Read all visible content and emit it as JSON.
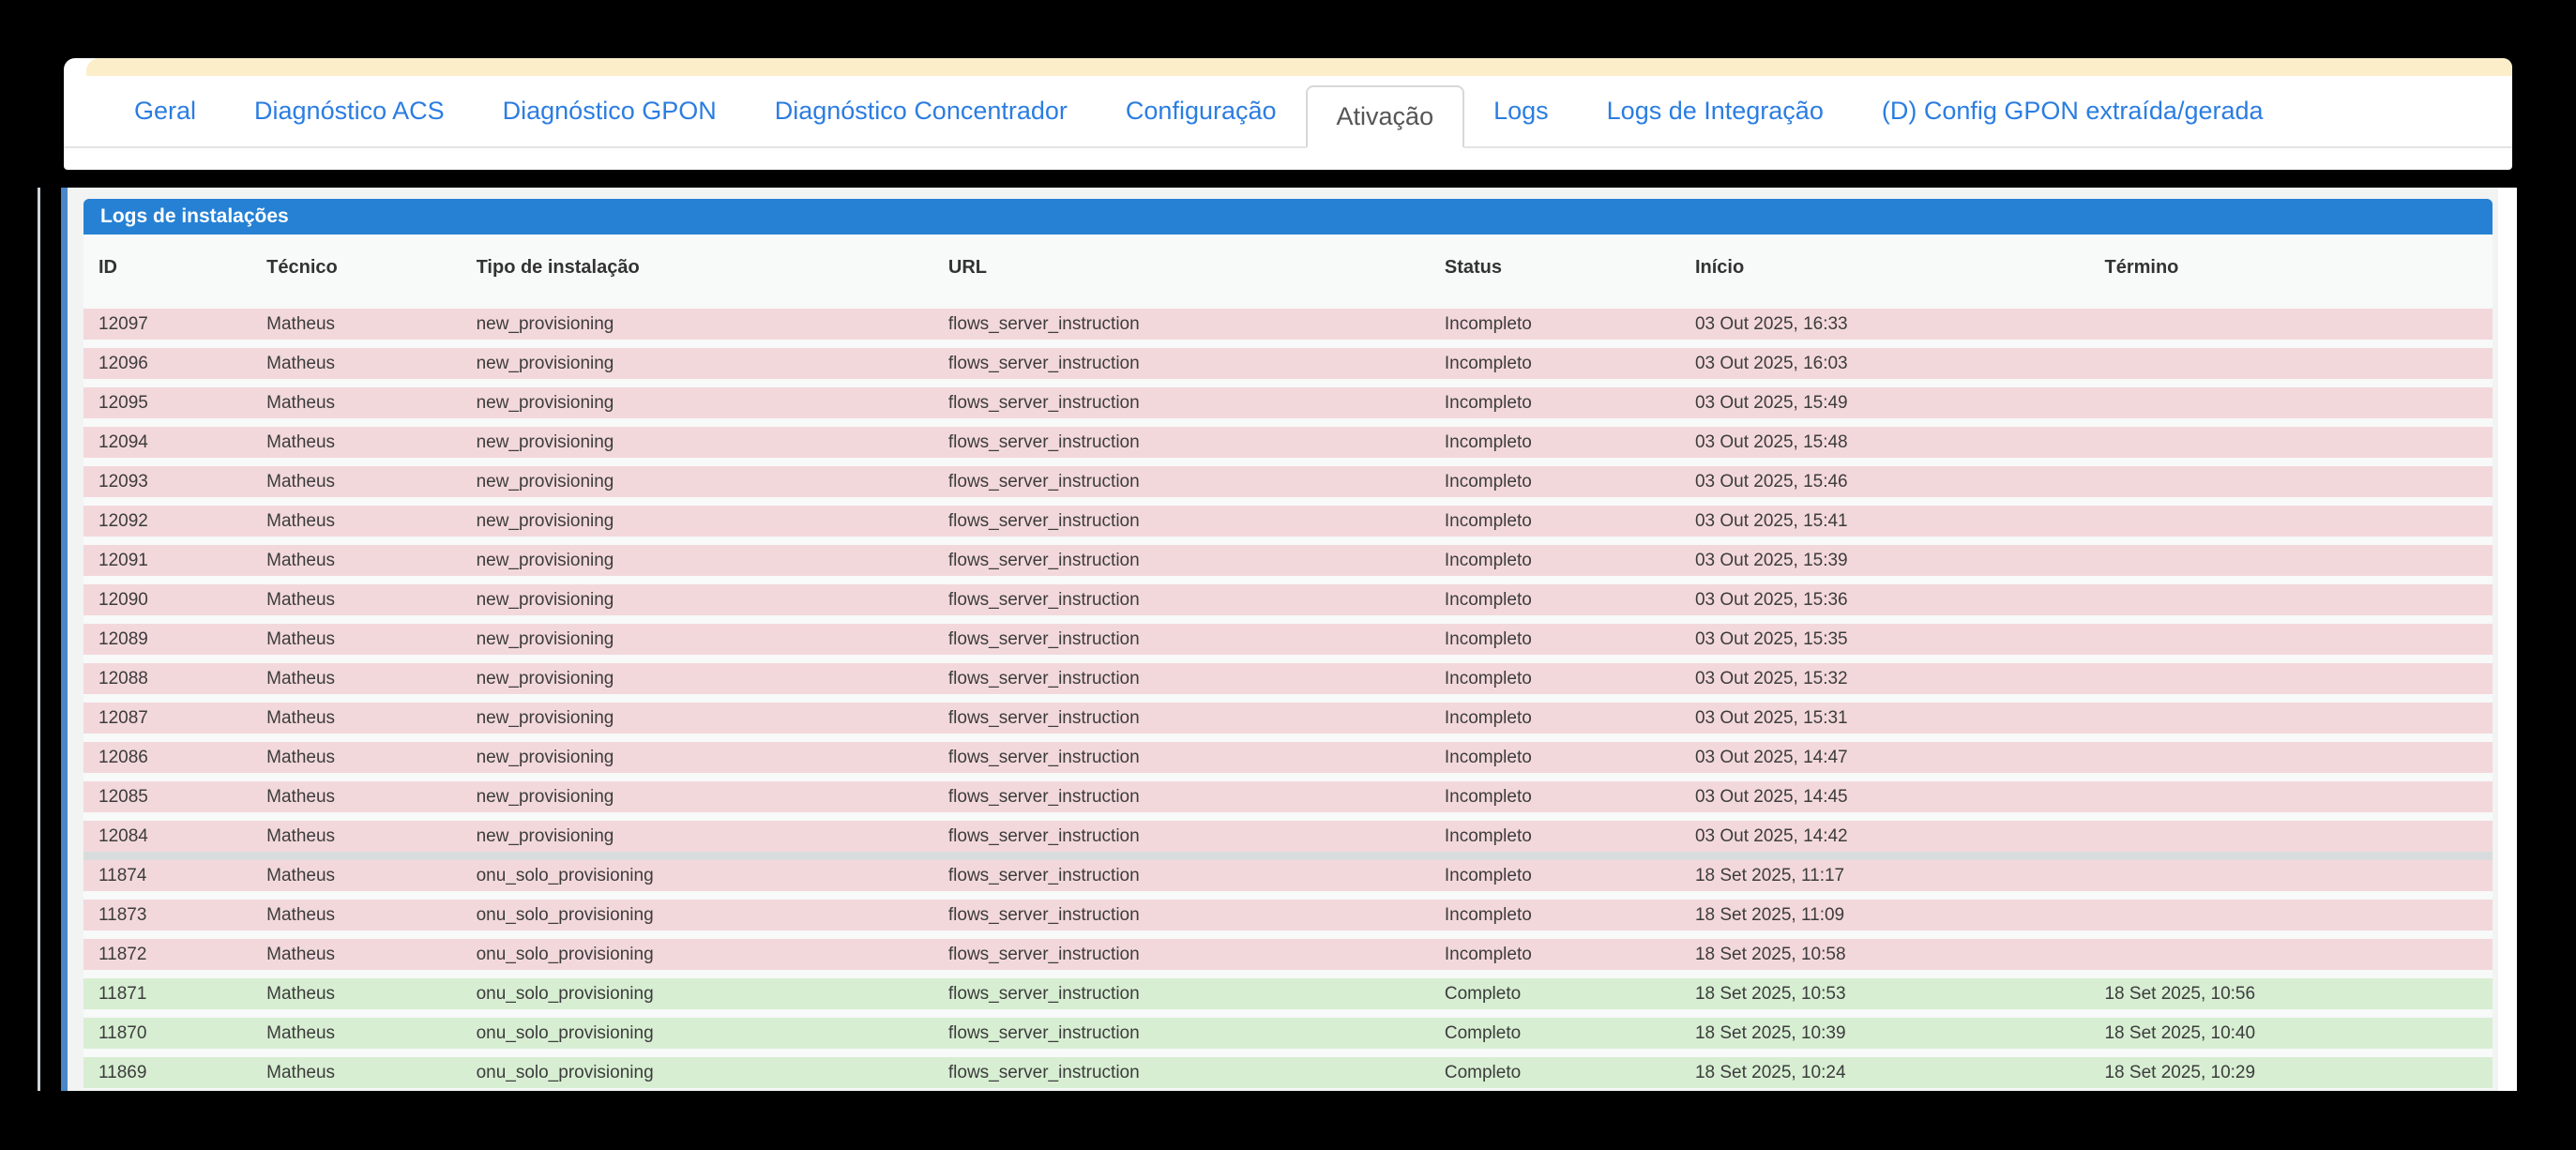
{
  "tabs": {
    "items": [
      {
        "label": "Geral",
        "variant": ""
      },
      {
        "label": "Diagnóstico ACS",
        "variant": ""
      },
      {
        "label": "Diagnóstico GPON",
        "variant": ""
      },
      {
        "label": "Diagnóstico Concentrador",
        "variant": ""
      },
      {
        "label": "Configuração",
        "variant": ""
      },
      {
        "label": "Ativação",
        "variant": "active"
      },
      {
        "label": "Logs",
        "variant": ""
      },
      {
        "label": "Logs de Integração",
        "variant": ""
      },
      {
        "label": "(D) Config GPON extraída/gerada",
        "variant": ""
      }
    ]
  },
  "panel": {
    "title": "Logs de instalações"
  },
  "table": {
    "columns": [
      "ID",
      "Técnico",
      "Tipo de instalação",
      "URL",
      "Status",
      "Início",
      "Término"
    ],
    "rows": [
      {
        "id": "12097",
        "tecnico": "Matheus",
        "tipo": "new_provisioning",
        "url": "flows_server_instruction",
        "status": "Incompleto",
        "inicio": "03 Out 2025, 16:33",
        "termino": "",
        "variant": "danger",
        "divider_before": false
      },
      {
        "id": "12096",
        "tecnico": "Matheus",
        "tipo": "new_provisioning",
        "url": "flows_server_instruction",
        "status": "Incompleto",
        "inicio": "03 Out 2025, 16:03",
        "termino": "",
        "variant": "danger",
        "divider_before": false
      },
      {
        "id": "12095",
        "tecnico": "Matheus",
        "tipo": "new_provisioning",
        "url": "flows_server_instruction",
        "status": "Incompleto",
        "inicio": "03 Out 2025, 15:49",
        "termino": "",
        "variant": "danger",
        "divider_before": false
      },
      {
        "id": "12094",
        "tecnico": "Matheus",
        "tipo": "new_provisioning",
        "url": "flows_server_instruction",
        "status": "Incompleto",
        "inicio": "03 Out 2025, 15:48",
        "termino": "",
        "variant": "danger",
        "divider_before": false
      },
      {
        "id": "12093",
        "tecnico": "Matheus",
        "tipo": "new_provisioning",
        "url": "flows_server_instruction",
        "status": "Incompleto",
        "inicio": "03 Out 2025, 15:46",
        "termino": "",
        "variant": "danger",
        "divider_before": false
      },
      {
        "id": "12092",
        "tecnico": "Matheus",
        "tipo": "new_provisioning",
        "url": "flows_server_instruction",
        "status": "Incompleto",
        "inicio": "03 Out 2025, 15:41",
        "termino": "",
        "variant": "danger",
        "divider_before": false
      },
      {
        "id": "12091",
        "tecnico": "Matheus",
        "tipo": "new_provisioning",
        "url": "flows_server_instruction",
        "status": "Incompleto",
        "inicio": "03 Out 2025, 15:39",
        "termino": "",
        "variant": "danger",
        "divider_before": false
      },
      {
        "id": "12090",
        "tecnico": "Matheus",
        "tipo": "new_provisioning",
        "url": "flows_server_instruction",
        "status": "Incompleto",
        "inicio": "03 Out 2025, 15:36",
        "termino": "",
        "variant": "danger",
        "divider_before": false
      },
      {
        "id": "12089",
        "tecnico": "Matheus",
        "tipo": "new_provisioning",
        "url": "flows_server_instruction",
        "status": "Incompleto",
        "inicio": "03 Out 2025, 15:35",
        "termino": "",
        "variant": "danger",
        "divider_before": false
      },
      {
        "id": "12088",
        "tecnico": "Matheus",
        "tipo": "new_provisioning",
        "url": "flows_server_instruction",
        "status": "Incompleto",
        "inicio": "03 Out 2025, 15:32",
        "termino": "",
        "variant": "danger",
        "divider_before": false
      },
      {
        "id": "12087",
        "tecnico": "Matheus",
        "tipo": "new_provisioning",
        "url": "flows_server_instruction",
        "status": "Incompleto",
        "inicio": "03 Out 2025, 15:31",
        "termino": "",
        "variant": "danger",
        "divider_before": false
      },
      {
        "id": "12086",
        "tecnico": "Matheus",
        "tipo": "new_provisioning",
        "url": "flows_server_instruction",
        "status": "Incompleto",
        "inicio": "03 Out 2025, 14:47",
        "termino": "",
        "variant": "danger",
        "divider_before": false
      },
      {
        "id": "12085",
        "tecnico": "Matheus",
        "tipo": "new_provisioning",
        "url": "flows_server_instruction",
        "status": "Incompleto",
        "inicio": "03 Out 2025, 14:45",
        "termino": "",
        "variant": "danger",
        "divider_before": false
      },
      {
        "id": "12084",
        "tecnico": "Matheus",
        "tipo": "new_provisioning",
        "url": "flows_server_instruction",
        "status": "Incompleto",
        "inicio": "03 Out 2025, 14:42",
        "termino": "",
        "variant": "danger",
        "divider_before": false
      },
      {
        "id": "11874",
        "tecnico": "Matheus",
        "tipo": "onu_solo_provisioning",
        "url": "flows_server_instruction",
        "status": "Incompleto",
        "inicio": "18 Set 2025, 11:17",
        "termino": "",
        "variant": "danger",
        "divider_before": true
      },
      {
        "id": "11873",
        "tecnico": "Matheus",
        "tipo": "onu_solo_provisioning",
        "url": "flows_server_instruction",
        "status": "Incompleto",
        "inicio": "18 Set 2025, 11:09",
        "termino": "",
        "variant": "danger",
        "divider_before": false
      },
      {
        "id": "11872",
        "tecnico": "Matheus",
        "tipo": "onu_solo_provisioning",
        "url": "flows_server_instruction",
        "status": "Incompleto",
        "inicio": "18 Set 2025, 10:58",
        "termino": "",
        "variant": "danger",
        "divider_before": false
      },
      {
        "id": "11871",
        "tecnico": "Matheus",
        "tipo": "onu_solo_provisioning",
        "url": "flows_server_instruction",
        "status": "Completo",
        "inicio": "18 Set 2025, 10:53",
        "termino": "18 Set 2025, 10:56",
        "variant": "success",
        "divider_before": false
      },
      {
        "id": "11870",
        "tecnico": "Matheus",
        "tipo": "onu_solo_provisioning",
        "url": "flows_server_instruction",
        "status": "Completo",
        "inicio": "18 Set 2025, 10:39",
        "termino": "18 Set 2025, 10:40",
        "variant": "success",
        "divider_before": false
      },
      {
        "id": "11869",
        "tecnico": "Matheus",
        "tipo": "onu_solo_provisioning",
        "url": "flows_server_instruction",
        "status": "Completo",
        "inicio": "18 Set 2025, 10:24",
        "termino": "18 Set 2025, 10:29",
        "variant": "success",
        "divider_before": false
      }
    ]
  },
  "colors": {
    "tab_link": "#2b7de1",
    "panel_header": "#2681d4",
    "row_incomplete": "#f3d8db",
    "row_complete": "#d7eed2",
    "notice_bar": "#fdeeca"
  }
}
